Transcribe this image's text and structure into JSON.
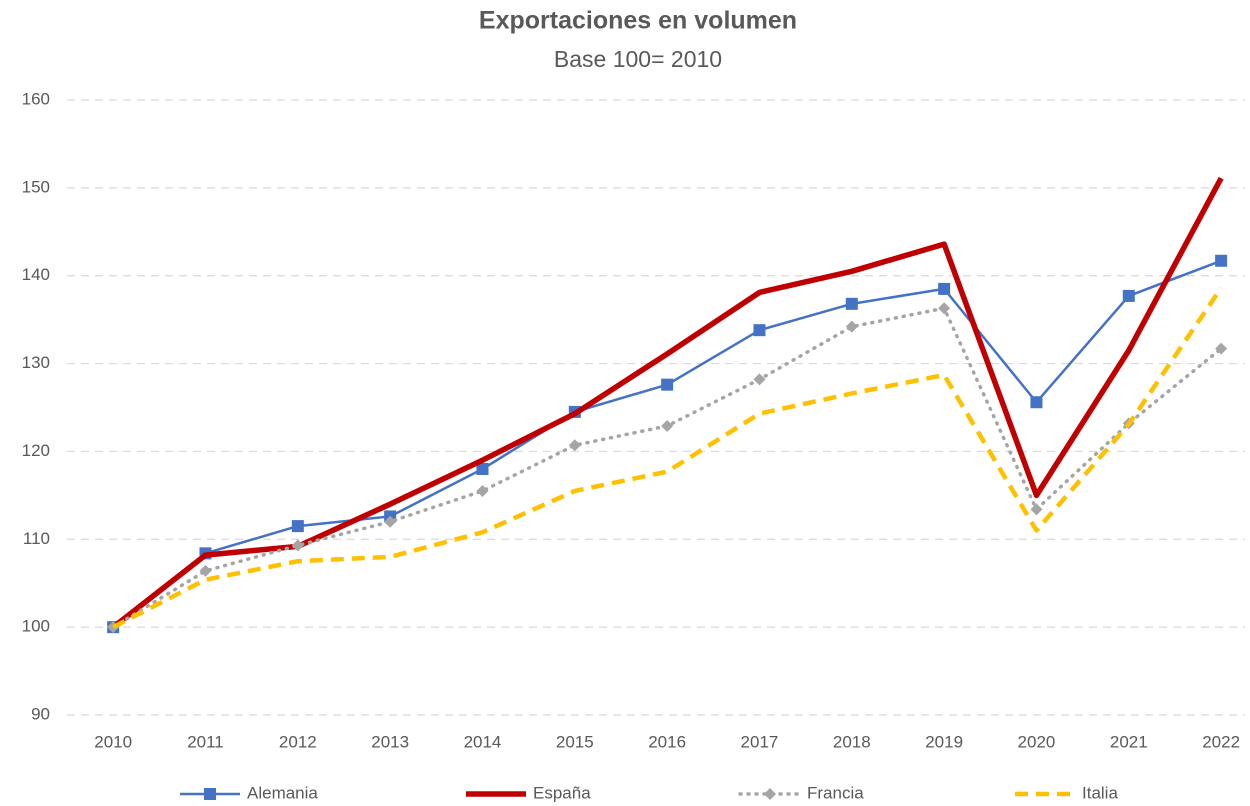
{
  "chart_data": {
    "type": "line",
    "title": "Exportaciones en volumen",
    "subtitle": "Base 100= 2010",
    "categories": [
      "2010",
      "2011",
      "2012",
      "2013",
      "2014",
      "2015",
      "2016",
      "2017",
      "2018",
      "2019",
      "2020",
      "2021",
      "2022"
    ],
    "series": [
      {
        "name": "Alemania",
        "color": "#4472c4",
        "line_style": "solid",
        "marker": "square",
        "values": [
          100,
          108.4,
          111.5,
          112.6,
          118.0,
          124.5,
          127.6,
          133.8,
          136.8,
          138.5,
          125.6,
          137.7,
          141.7
        ]
      },
      {
        "name": "España",
        "color": "#c00000",
        "line_style": "thick",
        "marker": "none",
        "values": [
          100,
          108.2,
          109.2,
          114.0,
          119.0,
          124.3,
          131.1,
          138.1,
          140.5,
          143.6,
          115.0,
          131.5,
          151.1
        ]
      },
      {
        "name": "Francia",
        "color": "#a5a5a5",
        "line_style": "dotted",
        "marker": "diamond",
        "values": [
          100,
          106.4,
          109.3,
          112.0,
          115.5,
          120.7,
          122.9,
          128.2,
          134.2,
          136.3,
          113.4,
          123.2,
          131.7
        ]
      },
      {
        "name": "Italia",
        "color": "#ffc000",
        "line_style": "dashed",
        "marker": "none",
        "values": [
          100,
          105.4,
          107.5,
          108.0,
          110.8,
          115.5,
          117.7,
          124.3,
          126.6,
          128.7,
          111.0,
          123.1,
          138.6
        ]
      }
    ],
    "ylim": [
      90,
      160
    ],
    "yticks": [
      90,
      100,
      110,
      120,
      130,
      140,
      150,
      160
    ],
    "grid": true,
    "legend": "bottom"
  }
}
